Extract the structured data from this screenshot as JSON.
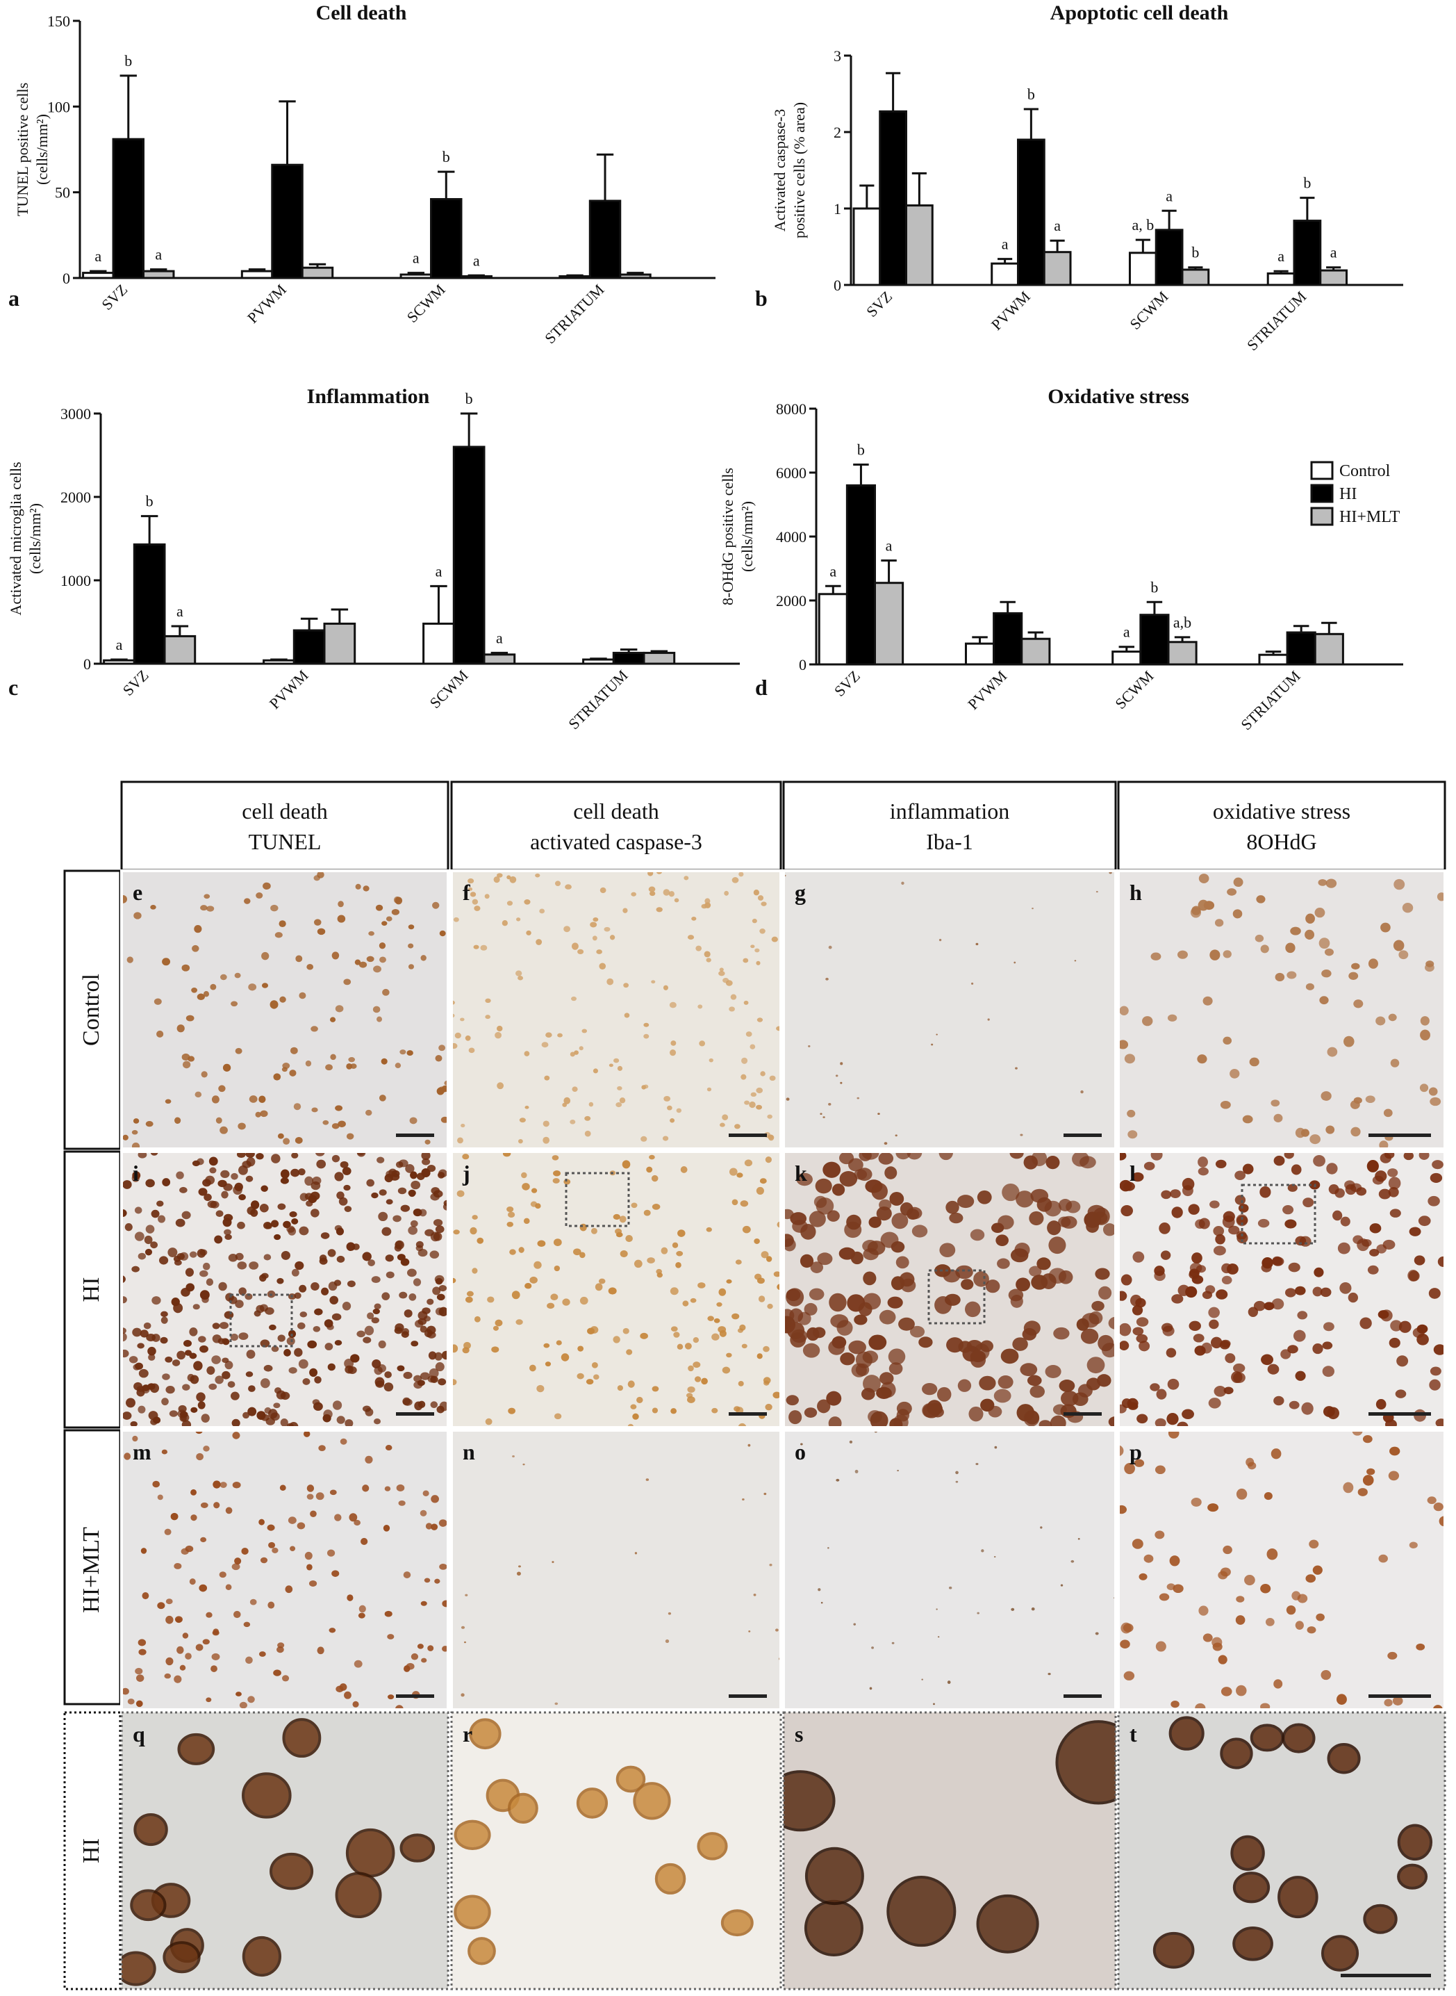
{
  "figure": {
    "legend": [
      {
        "name": "Control",
        "color": "#ffffff"
      },
      {
        "name": "HI",
        "color": "#000000"
      },
      {
        "name": "HI+MLT",
        "color": "#bdbdbd"
      }
    ],
    "columns": [
      {
        "line1": "cell death",
        "line2": "TUNEL"
      },
      {
        "line1": "cell death",
        "line2": "activated caspase-3"
      },
      {
        "line1": "inflammation",
        "line2": "Iba-1"
      },
      {
        "line1": "oxidative stress",
        "line2": "8OHdG"
      }
    ],
    "rows": [
      "Control",
      "HI",
      "HI+MLT",
      "HI"
    ],
    "tiles": [
      [
        "e",
        "f",
        "g",
        "h"
      ],
      [
        "i",
        "j",
        "k",
        "l"
      ],
      [
        "m",
        "n",
        "o",
        "p"
      ],
      [
        "q",
        "r",
        "s",
        "t"
      ]
    ]
  },
  "chart_data": [
    {
      "panel": "a",
      "type": "bar",
      "title": "Cell death",
      "ylabel_line1": "TUNEL positive cells",
      "ylabel_line2": "(cells/mm²)",
      "ylim": [
        0,
        150
      ],
      "yticks": [
        0,
        50,
        100,
        150
      ],
      "categories": [
        "SVZ",
        "PVWM",
        "SCWM",
        "STRIATUM"
      ],
      "series": [
        {
          "name": "Control",
          "values": [
            3,
            4,
            2,
            1
          ],
          "errors": [
            1,
            1,
            1,
            0.5
          ]
        },
        {
          "name": "HI",
          "values": [
            81,
            66,
            46,
            45
          ],
          "errors": [
            37,
            37,
            16,
            27
          ]
        },
        {
          "name": "HI+MLT",
          "values": [
            4,
            6,
            1,
            2
          ],
          "errors": [
            1,
            2,
            0.5,
            1
          ]
        }
      ],
      "annotations": [
        [
          "a",
          "b",
          "a"
        ],
        [
          "",
          "",
          ""
        ],
        [
          "a",
          "b",
          "a"
        ],
        [
          "",
          "",
          ""
        ]
      ]
    },
    {
      "panel": "b",
      "type": "bar",
      "title": "Apoptotic cell death",
      "ylabel_line1": "Activated caspase-3",
      "ylabel_line2": "positive cells (% area)",
      "ylim": [
        0,
        3
      ],
      "yticks": [
        0,
        1,
        2,
        3
      ],
      "categories": [
        "SVZ",
        "PVWM",
        "SCWM",
        "STRIATUM"
      ],
      "series": [
        {
          "name": "Control",
          "values": [
            1.0,
            0.28,
            0.42,
            0.15
          ],
          "errors": [
            0.3,
            0.06,
            0.17,
            0.03
          ]
        },
        {
          "name": "HI",
          "values": [
            2.27,
            1.9,
            0.72,
            0.84
          ],
          "errors": [
            0.5,
            0.4,
            0.25,
            0.3
          ]
        },
        {
          "name": "HI+MLT",
          "values": [
            1.04,
            0.43,
            0.2,
            0.19
          ],
          "errors": [
            0.42,
            0.15,
            0.03,
            0.04
          ]
        }
      ],
      "annotations": [
        [
          "",
          "",
          ""
        ],
        [
          "a",
          "b",
          "a"
        ],
        [
          "a, b",
          "a",
          "b"
        ],
        [
          "a",
          "b",
          "a"
        ]
      ]
    },
    {
      "panel": "c",
      "type": "bar",
      "title": "Inflammation",
      "ylabel_line1": "Activated microglia cells",
      "ylabel_line2": "(cells/mm²)",
      "ylim": [
        0,
        3000
      ],
      "yticks": [
        0,
        1000,
        2000,
        3000
      ],
      "categories": [
        "SVZ",
        "PVWM",
        "SCWM",
        "STRIATUM"
      ],
      "series": [
        {
          "name": "Control",
          "values": [
            40,
            40,
            480,
            50
          ],
          "errors": [
            10,
            10,
            450,
            10
          ]
        },
        {
          "name": "HI",
          "values": [
            1430,
            400,
            2600,
            130
          ],
          "errors": [
            340,
            140,
            400,
            40
          ]
        },
        {
          "name": "HI+MLT",
          "values": [
            330,
            480,
            110,
            130
          ],
          "errors": [
            120,
            170,
            20,
            20
          ]
        }
      ],
      "annotations": [
        [
          "a",
          "b",
          "a"
        ],
        [
          "",
          "",
          ""
        ],
        [
          "a",
          "b",
          "a"
        ],
        [
          "",
          "",
          ""
        ]
      ]
    },
    {
      "panel": "d",
      "type": "bar",
      "title": "Oxidative stress",
      "ylabel_line1": "8-OHdG positive cells",
      "ylabel_line2": "(cells/mm²)",
      "ylim": [
        0,
        8000
      ],
      "yticks": [
        0,
        2000,
        4000,
        6000,
        8000
      ],
      "categories": [
        "SVZ",
        "PVWM",
        "SCWM",
        "STRIATUM"
      ],
      "series": [
        {
          "name": "Control",
          "values": [
            2200,
            650,
            400,
            300
          ],
          "errors": [
            250,
            200,
            150,
            100
          ]
        },
        {
          "name": "HI",
          "values": [
            5600,
            1600,
            1550,
            1000
          ],
          "errors": [
            650,
            350,
            400,
            200
          ]
        },
        {
          "name": "HI+MLT",
          "values": [
            2550,
            800,
            700,
            950
          ],
          "errors": [
            700,
            200,
            150,
            350
          ]
        }
      ],
      "annotations": [
        [
          "a",
          "b",
          "a"
        ],
        [
          "",
          "",
          ""
        ],
        [
          "a",
          "b",
          "a,b"
        ],
        [
          "",
          "",
          ""
        ]
      ]
    }
  ]
}
